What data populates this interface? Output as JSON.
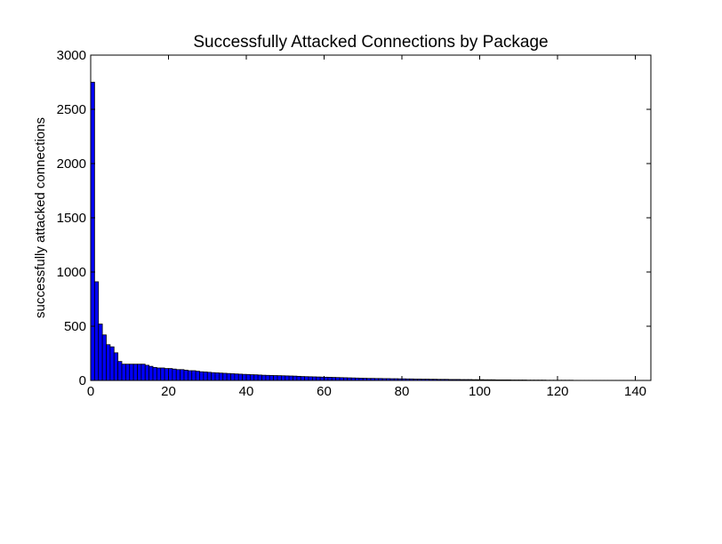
{
  "chart_data": {
    "type": "bar",
    "title": "Successfully Attacked Connections by Package",
    "xlabel": "",
    "ylabel": "successfully attacked connections",
    "xlim": [
      0,
      144
    ],
    "ylim": [
      0,
      3000
    ],
    "xticks": [
      0,
      20,
      40,
      60,
      80,
      100,
      120,
      140
    ],
    "yticks": [
      0,
      500,
      1000,
      1500,
      2000,
      2500,
      3000
    ],
    "grid": false,
    "legend": "none",
    "bar_color": "#0000ff",
    "edge_color": "#000000",
    "values": [
      2750,
      910,
      520,
      420,
      330,
      310,
      255,
      175,
      150,
      150,
      150,
      150,
      150,
      150,
      140,
      130,
      120,
      115,
      115,
      110,
      110,
      105,
      100,
      100,
      95,
      90,
      90,
      85,
      80,
      78,
      75,
      72,
      70,
      68,
      66,
      64,
      62,
      60,
      58,
      56,
      55,
      53,
      52,
      50,
      48,
      47,
      46,
      45,
      44,
      43,
      42,
      41,
      40,
      38,
      36,
      35,
      34,
      33,
      32,
      31,
      30,
      29,
      28,
      27,
      26,
      25,
      24,
      23,
      22,
      21,
      20,
      19,
      19,
      18,
      18,
      17,
      17,
      16,
      16,
      15,
      15,
      14,
      14,
      13,
      13,
      12,
      12,
      11,
      11,
      10,
      10,
      10,
      9,
      9,
      9,
      8,
      8,
      8,
      7,
      7,
      7,
      6,
      6,
      6,
      5,
      5,
      5,
      5,
      4,
      4,
      4,
      4,
      3,
      3,
      3,
      3,
      3,
      2,
      2,
      2,
      2,
      2,
      2,
      2,
      1,
      1,
      1,
      1,
      1,
      1,
      1,
      1,
      1,
      1,
      1,
      1,
      1,
      1,
      1,
      1,
      1,
      1,
      1,
      1
    ]
  }
}
